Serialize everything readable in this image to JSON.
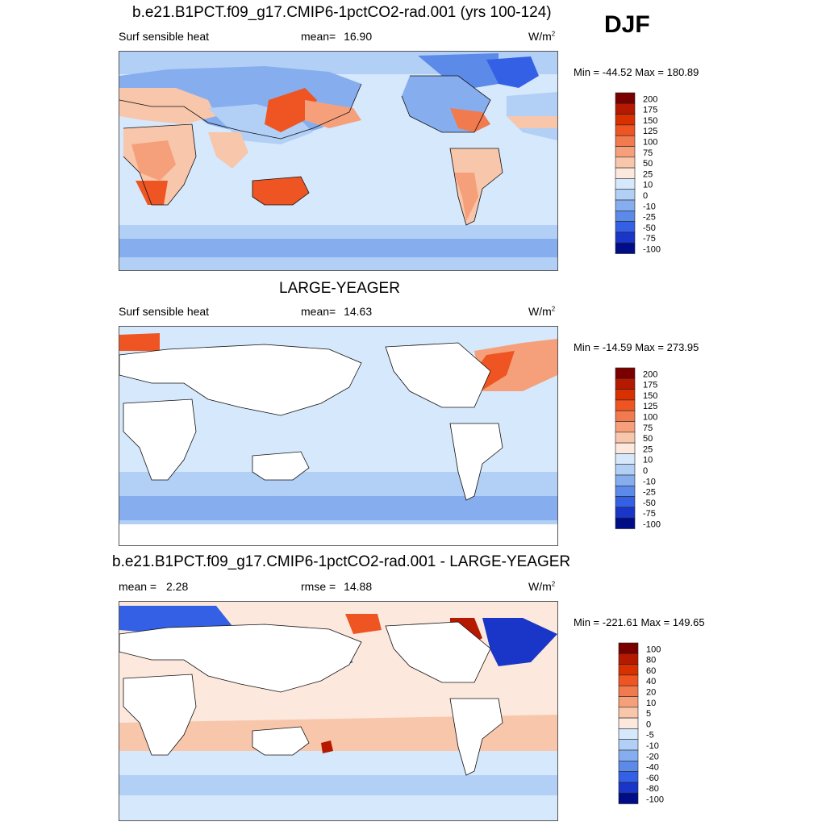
{
  "season": "DJF",
  "panels": [
    {
      "title": "b.e21.B1PCT.f09_g17.CMIP6-1pctCO2-rad.001 (yrs 100-124)",
      "variable": "Surf sensible heat",
      "stat1_label": "mean=",
      "stat1_value": "16.90",
      "units_base": "W/m",
      "units_exp": "2",
      "minmax": "Min = -44.52 Max = 180.89",
      "colorbar_labels": [
        "200",
        "175",
        "150",
        "125",
        "100",
        "75",
        "50",
        "25",
        "10",
        "0",
        "-10",
        "-25",
        "-50",
        "-75",
        "-100"
      ]
    },
    {
      "title": "LARGE-YEAGER",
      "variable": "Surf sensible heat",
      "stat1_label": "mean=",
      "stat1_value": "14.63",
      "units_base": "W/m",
      "units_exp": "2",
      "minmax": "Min = -14.59 Max = 273.95",
      "colorbar_labels": [
        "200",
        "175",
        "150",
        "125",
        "100",
        "75",
        "50",
        "25",
        "10",
        "0",
        "-10",
        "-25",
        "-50",
        "-75",
        "-100"
      ]
    },
    {
      "title": "b.e21.B1PCT.f09_g17.CMIP6-1pctCO2-rad.001 - LARGE-YEAGER",
      "stat1_label": "mean =",
      "stat1_value": "2.28",
      "stat2_label": "rmse =",
      "stat2_value": "14.88",
      "units_base": "W/m",
      "units_exp": "2",
      "minmax": "Min = -221.61 Max = 149.65",
      "colorbar_labels": [
        "100",
        "80",
        "60",
        "40",
        "20",
        "10",
        "5",
        "0",
        "-5",
        "-10",
        "-20",
        "-40",
        "-60",
        "-80",
        "-100"
      ]
    }
  ],
  "colorbar_colors": [
    "#7a0000",
    "#b51a00",
    "#d93000",
    "#ee5522",
    "#f27a4f",
    "#f5a07a",
    "#f8c6ab",
    "#fce8dc",
    "#d6e8fb",
    "#b2cff6",
    "#86aeee",
    "#5b8ae8",
    "#3460e6",
    "#1a36c8",
    "#000d87"
  ]
}
